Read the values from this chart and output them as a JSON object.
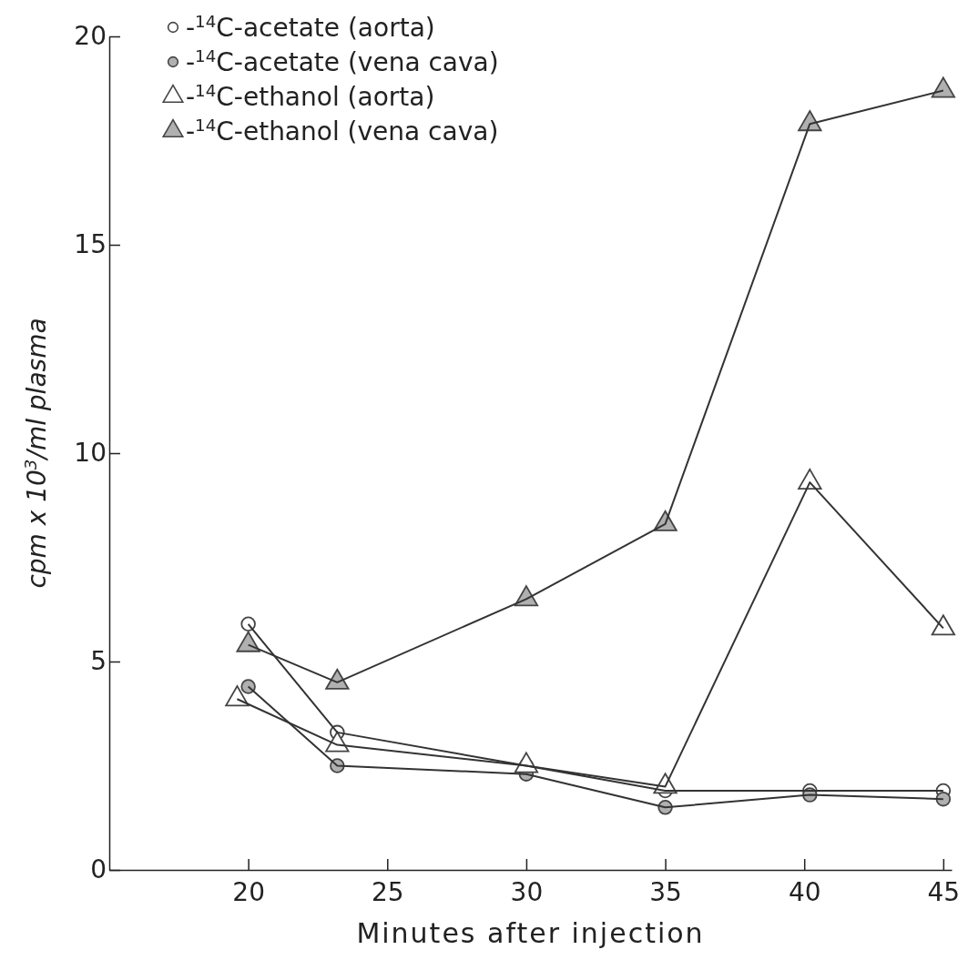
{
  "chart_data": {
    "type": "line",
    "xlabel": "Minutes after injection",
    "ylabel": "cpm x 10$^{3}$/ml plasma",
    "xlim": [
      15,
      45.3
    ],
    "xticks": [
      20,
      25,
      30,
      35,
      40,
      45
    ],
    "ylim": [
      0,
      20
    ],
    "yticks": [
      0,
      5,
      10,
      15,
      20
    ],
    "grid": false,
    "legend": "top left",
    "series": [
      {
        "name": "-$^{14}$C-acetate (aorta)",
        "color": "#ffffff",
        "marker": "circle",
        "x": [
          20,
          23.2,
          30,
          35,
          40.2,
          45
        ],
        "values": [
          5.9,
          3.3,
          2.5,
          1.9,
          1.9,
          1.9
        ]
      },
      {
        "name": "-$^{14}$C-acetate  (vena cava)",
        "color": "#b0b0b0",
        "marker": "circle",
        "x": [
          20,
          23.2,
          30,
          35,
          40.2,
          45
        ],
        "values": [
          4.4,
          2.5,
          2.3,
          1.5,
          1.8,
          1.7
        ]
      },
      {
        "name": "-$^{14}$C-ethanol (aorta)",
        "color": "#ffffff",
        "marker": "triangle",
        "x": [
          19.6,
          23.2,
          30,
          35,
          40.2,
          45
        ],
        "values": [
          4.1,
          3.0,
          2.5,
          2.0,
          9.3,
          5.8
        ]
      },
      {
        "name": "-$^{14}$C-ethanol (vena cava)",
        "color": "#b0b0b0",
        "marker": "triangle",
        "x": [
          20,
          23.2,
          30,
          35,
          40.2,
          45
        ],
        "values": [
          5.4,
          4.5,
          6.5,
          8.3,
          17.9,
          18.7
        ]
      }
    ]
  }
}
